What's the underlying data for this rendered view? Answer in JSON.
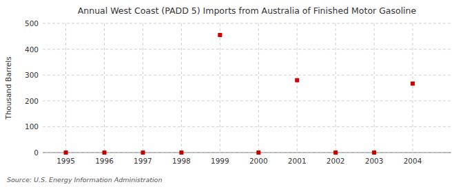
{
  "chart_data": {
    "type": "scatter",
    "title": "Annual West Coast (PADD 5) Imports from Australia of Finished Motor Gasoline",
    "y_label": "Thousand Barrels",
    "source": "Source: U.S. Energy Information Administration",
    "x": [
      1995,
      1996,
      1997,
      1998,
      1999,
      2000,
      2001,
      2002,
      2003,
      2004
    ],
    "values": [
      0,
      0,
      0,
      0,
      455,
      0,
      280,
      0,
      0,
      267
    ],
    "xlim": [
      1994.4,
      2005.0
    ],
    "xticks": [
      1995,
      1996,
      1997,
      1998,
      1999,
      2000,
      2001,
      2002,
      2003,
      2004
    ],
    "ylim": [
      0,
      500
    ],
    "yticks": [
      0,
      100,
      200,
      300,
      400,
      500
    ],
    "color": "#cc0000",
    "marker": "square",
    "grid": true
  }
}
